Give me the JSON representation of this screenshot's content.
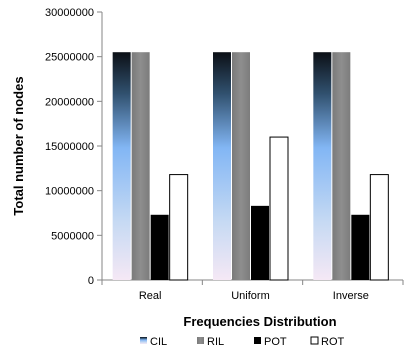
{
  "chart_data": {
    "type": "bar",
    "title": "",
    "xlabel": "Frequencies Distribution",
    "ylabel": "Total number of nodes",
    "ylim": [
      0,
      30000000
    ],
    "y_ticks": [
      "0",
      "5000000",
      "10000000",
      "15000000",
      "20000000",
      "25000000",
      "30000000"
    ],
    "categories": [
      "Real",
      "Uniform",
      "Inverse"
    ],
    "series": [
      {
        "name": "CIL",
        "values": [
          25500000,
          25500000,
          25500000
        ],
        "style": "gradient",
        "color": "#82b6f4"
      },
      {
        "name": "RIL",
        "values": [
          25500000,
          25500000,
          25500000
        ],
        "style": "gradient-gray",
        "color": "#8c8c8c"
      },
      {
        "name": "POT",
        "values": [
          7300000,
          8300000,
          7300000
        ],
        "style": "solid",
        "color": "#000000"
      },
      {
        "name": "ROT",
        "values": [
          11800000,
          16000000,
          11800000
        ],
        "style": "outline",
        "color": "#ffffff"
      }
    ],
    "grid": false,
    "legend_position": "bottom"
  }
}
